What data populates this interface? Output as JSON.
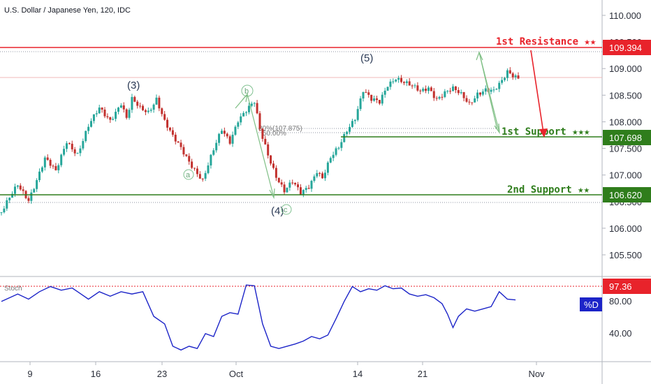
{
  "header": {
    "title": "U.S. Dollar / Japanese Yen, 120, IDC"
  },
  "colors": {
    "resistance": "#e8232b",
    "support": "#2f7d1c",
    "bull": "#26a69a",
    "bear": "#c2312e",
    "stoch": "#1c24c8",
    "price_line": "#e8232b"
  },
  "chart_data": {
    "type": "candlestick",
    "price_axis": {
      "ticks": [
        "110.000",
        "109.500",
        "109.000",
        "108.500",
        "108.000",
        "107.500",
        "107.000",
        "106.500",
        "106.000",
        "105.500"
      ]
    },
    "time_axis": {
      "ticks": [
        "9",
        "16",
        "23",
        "Oct",
        "14",
        "21",
        "Nov"
      ]
    },
    "levels": [
      {
        "name": "1st Resistance ★★",
        "value": 109.394,
        "value_label": "109.394",
        "color": "#e8232b"
      },
      {
        "name": "1st Support ★★★",
        "value": 107.698,
        "value_label": "107.698",
        "color": "#2f7d1c"
      },
      {
        "name": "2nd Support ★★",
        "value": 106.62,
        "value_label": "106.620",
        "color": "#2f7d1c"
      }
    ],
    "fibonacci": {
      "levels": [
        "50.00%",
        "80%(107.875)"
      ]
    },
    "wave_labels": [
      "(3)",
      "(4)",
      "(5)",
      "a",
      "b",
      "c"
    ],
    "price_path": [
      [
        0,
        106.3
      ],
      [
        6,
        106.8
      ],
      [
        10,
        106.55
      ],
      [
        16,
        107.3
      ],
      [
        20,
        107.05
      ],
      [
        24,
        107.65
      ],
      [
        28,
        107.4
      ],
      [
        32,
        107.9
      ],
      [
        36,
        108.25
      ],
      [
        40,
        108.05
      ],
      [
        44,
        108.35
      ],
      [
        46,
        108.05
      ],
      [
        48,
        108.4
      ],
      [
        51,
        108.25
      ],
      [
        54,
        108.2
      ],
      [
        57,
        108.45
      ],
      [
        60,
        108.0
      ],
      [
        63,
        107.7
      ],
      [
        66,
        107.5
      ],
      [
        70,
        107.2
      ],
      [
        74,
        106.9
      ],
      [
        78,
        107.45
      ],
      [
        81,
        107.85
      ],
      [
        84,
        107.65
      ],
      [
        87,
        108.05
      ],
      [
        90,
        108.2
      ],
      [
        93,
        108.35
      ],
      [
        95,
        107.85
      ],
      [
        98,
        107.4
      ],
      [
        101,
        107.0
      ],
      [
        104,
        106.7
      ],
      [
        107,
        106.85
      ],
      [
        110,
        106.65
      ],
      [
        113,
        106.8
      ],
      [
        116,
        107.1
      ],
      [
        118,
        106.95
      ],
      [
        121,
        107.3
      ],
      [
        124,
        107.5
      ],
      [
        127,
        107.85
      ],
      [
        130,
        108.1
      ],
      [
        133,
        108.6
      ],
      [
        136,
        108.4
      ],
      [
        139,
        108.35
      ],
      [
        142,
        108.7
      ],
      [
        145,
        108.85
      ],
      [
        148,
        108.75
      ],
      [
        151,
        108.65
      ],
      [
        154,
        108.55
      ],
      [
        157,
        108.65
      ],
      [
        160,
        108.45
      ],
      [
        163,
        108.55
      ],
      [
        166,
        108.6
      ],
      [
        169,
        108.5
      ],
      [
        172,
        108.35
      ],
      [
        175,
        108.55
      ],
      [
        178,
        108.6
      ],
      [
        181,
        108.55
      ],
      [
        184,
        108.75
      ],
      [
        186,
        108.95
      ],
      [
        188,
        108.9
      ],
      [
        190,
        108.85
      ]
    ],
    "stochastic": {
      "name": "Stoch",
      "level_label": "97.36",
      "series_label": "%D",
      "axis_ticks": [
        "80.00",
        "40.00"
      ],
      "path": [
        [
          0,
          75
        ],
        [
          6,
          85
        ],
        [
          10,
          78
        ],
        [
          14,
          88
        ],
        [
          18,
          95
        ],
        [
          22,
          90
        ],
        [
          26,
          93
        ],
        [
          28,
          88
        ],
        [
          32,
          78
        ],
        [
          36,
          88
        ],
        [
          40,
          82
        ],
        [
          44,
          88
        ],
        [
          48,
          85
        ],
        [
          52,
          88
        ],
        [
          56,
          55
        ],
        [
          60,
          45
        ],
        [
          63,
          15
        ],
        [
          66,
          10
        ],
        [
          69,
          15
        ],
        [
          72,
          12
        ],
        [
          75,
          32
        ],
        [
          78,
          28
        ],
        [
          81,
          55
        ],
        [
          84,
          60
        ],
        [
          87,
          58
        ],
        [
          90,
          97
        ],
        [
          93,
          96
        ],
        [
          96,
          45
        ],
        [
          99,
          15
        ],
        [
          102,
          12
        ],
        [
          105,
          15
        ],
        [
          108,
          18
        ],
        [
          111,
          22
        ],
        [
          114,
          28
        ],
        [
          117,
          25
        ],
        [
          120,
          30
        ],
        [
          123,
          52
        ],
        [
          126,
          75
        ],
        [
          129,
          95
        ],
        [
          132,
          88
        ],
        [
          135,
          92
        ],
        [
          138,
          90
        ],
        [
          141,
          96
        ],
        [
          144,
          92
        ],
        [
          147,
          93
        ],
        [
          150,
          85
        ],
        [
          153,
          82
        ],
        [
          156,
          84
        ],
        [
          159,
          80
        ],
        [
          162,
          72
        ],
        [
          164,
          58
        ],
        [
          166,
          40
        ],
        [
          168,
          55
        ],
        [
          171,
          65
        ],
        [
          174,
          62
        ],
        [
          177,
          65
        ],
        [
          180,
          68
        ],
        [
          183,
          88
        ],
        [
          186,
          78
        ],
        [
          189,
          77
        ]
      ]
    }
  }
}
